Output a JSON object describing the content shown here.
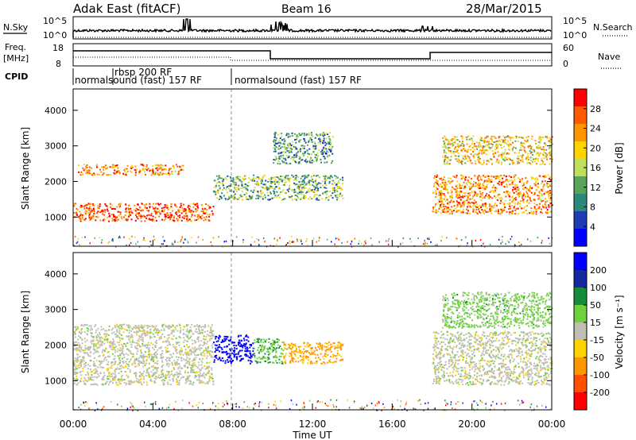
{
  "header": {
    "title": "Adak East (fitACF)",
    "beam": "Beam 16",
    "date": "28/Mar/2015"
  },
  "noise_panel": {
    "left_label": "N.Sky",
    "right_label": "N.Search",
    "tick_top": "10^5",
    "tick_bottom": "10^0"
  },
  "freq_panel": {
    "left_label": "Freq.",
    "left_unit": "[MHz]",
    "left_ticks": [
      "18",
      "8"
    ],
    "right_label": "Nave",
    "right_ticks": [
      "60",
      "0"
    ]
  },
  "cpid": {
    "label": "CPID",
    "segments": [
      {
        "text": "normalsound (fast) 157 RF",
        "start_hour": 0
      },
      {
        "text": "rbsp 200 RF",
        "start_hour": 2
      },
      {
        "text": "normalsound (fast) 157 RF",
        "start_hour": 8
      }
    ]
  },
  "power_panel": {
    "ylabel": "Slant Range [km]",
    "yticks": [
      "1000",
      "2000",
      "3000",
      "4000"
    ],
    "colorbar_label": "Power [dB]",
    "colorbar_ticks": [
      "28",
      "24",
      "20",
      "16",
      "12",
      "8",
      "4"
    ],
    "colors": [
      "#ff0000",
      "#ff5a00",
      "#ff9600",
      "#ffd200",
      "#bfe05a",
      "#5aa35a",
      "#2a8a7a",
      "#1e3cb4",
      "#0000ff"
    ]
  },
  "velocity_panel": {
    "ylabel": "Slant Range [km]",
    "yticks": [
      "1000",
      "2000",
      "3000",
      "4000"
    ],
    "colorbar_label": "Velocity [m s⁻¹]",
    "colorbar_ticks": [
      "200",
      "100",
      "50",
      "15",
      "-15",
      "-50",
      "-100",
      "-200"
    ],
    "colors": [
      "#0000ff",
      "#1428a0",
      "#148c3c",
      "#6ed23c",
      "#bebeb4",
      "#ffd200",
      "#ff9600",
      "#ff5000",
      "#ff0000"
    ]
  },
  "xaxis": {
    "ticks": [
      "00:00",
      "04:00",
      "08:00",
      "12:00",
      "16:00",
      "20:00",
      "00:00"
    ],
    "label": "Time UT"
  },
  "chart_data": {
    "type": "heatmap",
    "title": "Adak East (fitACF)",
    "x_range_hours": [
      0,
      24
    ],
    "y_range_km": [
      180,
      4600
    ],
    "panels": [
      {
        "name": "Power",
        "units": "dB",
        "color_range": [
          0,
          30
        ],
        "features": [
          {
            "hours": [
              0.0,
              7.0
            ],
            "range_km": [
              900,
              1400
            ],
            "value_db": 26
          },
          {
            "hours": [
              0.2,
              5.5
            ],
            "range_km": [
              2200,
              2500
            ],
            "value_db": 22
          },
          {
            "hours": [
              7.0,
              13.5
            ],
            "range_km": [
              1500,
              2200
            ],
            "value_db": 12
          },
          {
            "hours": [
              10.0,
              13.0
            ],
            "range_km": [
              2500,
              3400
            ],
            "value_db": 10
          },
          {
            "hours": [
              18.0,
              24.0
            ],
            "range_km": [
              1100,
              2200
            ],
            "value_db": 22
          },
          {
            "hours": [
              18.5,
              24.0
            ],
            "range_km": [
              2500,
              3300
            ],
            "value_db": 18
          }
        ]
      },
      {
        "name": "Velocity",
        "units": "m s-1",
        "color_range": [
          -200,
          200
        ],
        "features": [
          {
            "hours": [
              0.0,
              7.0
            ],
            "range_km": [
              900,
              2600
            ],
            "value_ms": 0
          },
          {
            "hours": [
              7.0,
              9.0
            ],
            "range_km": [
              1500,
              2300
            ],
            "value_ms": 200
          },
          {
            "hours": [
              9.0,
              10.5
            ],
            "range_km": [
              1500,
              2200
            ],
            "value_ms": 60
          },
          {
            "hours": [
              10.5,
              13.5
            ],
            "range_km": [
              1500,
              2100
            ],
            "value_ms": -80
          },
          {
            "hours": [
              18.0,
              24.0
            ],
            "range_km": [
              900,
              2400
            ],
            "value_ms": 0
          },
          {
            "hours": [
              18.5,
              24.0
            ],
            "range_km": [
              2500,
              3500
            ],
            "value_ms": 40
          }
        ]
      }
    ]
  }
}
